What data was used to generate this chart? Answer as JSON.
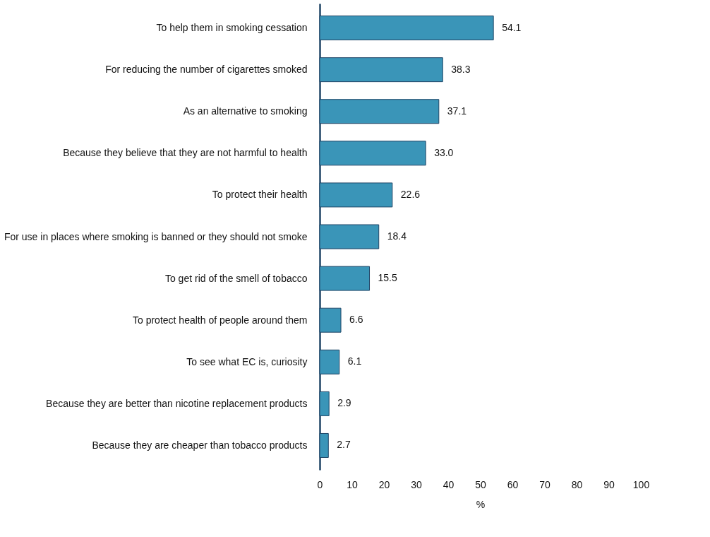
{
  "chart_data": {
    "type": "bar",
    "orientation": "horizontal",
    "xlabel": "%",
    "categories": [
      "To help them in smoking cessation",
      "For reducing the number of cigarettes smoked",
      "As an alternative to smoking",
      "Because they believe that they are not harmful to health",
      "To protect their health",
      "For use in places where smoking is banned or they should not smoke",
      "To get rid of the smell of tobacco",
      "To protect health of people around them",
      "To see what EC is, curiosity",
      "Because they are better than nicotine replacement products",
      "Because they are cheaper than tobacco products"
    ],
    "values": [
      54.1,
      38.3,
      37.1,
      33.0,
      22.6,
      18.4,
      15.5,
      6.6,
      6.1,
      2.9,
      2.7
    ],
    "value_labels": [
      "54.1",
      "38.3",
      "37.1",
      "33.0",
      "22.6",
      "18.4",
      "15.5",
      "6.6",
      "6.1",
      "2.9",
      "2.7"
    ],
    "color": "#3a95b8",
    "xlim": [
      0,
      100
    ],
    "xticks": [
      0,
      10,
      20,
      30,
      40,
      50,
      60,
      70,
      80,
      90,
      100
    ],
    "grid": false
  }
}
